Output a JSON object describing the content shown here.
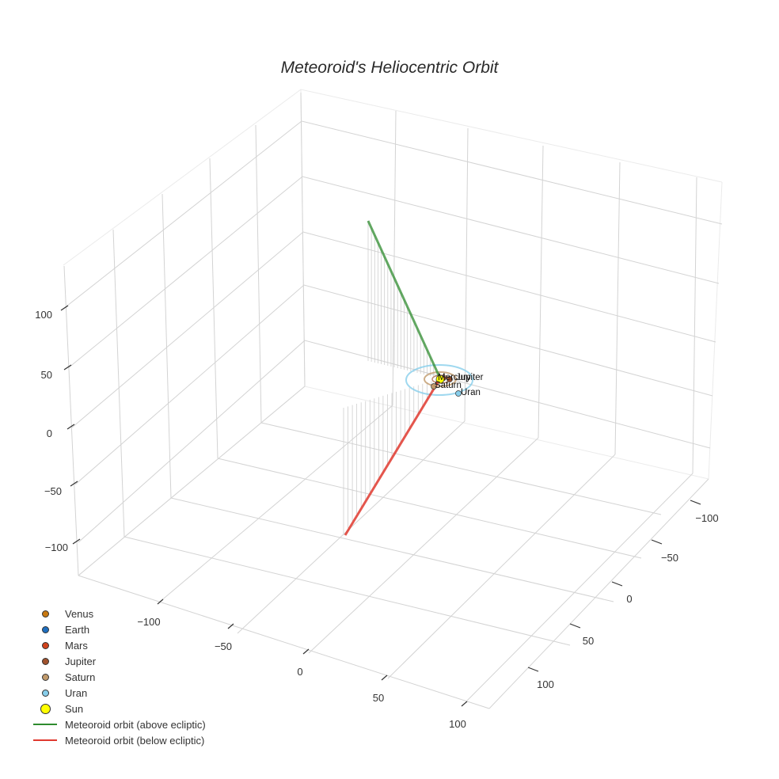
{
  "title": "Meteoroid's Heliocentric Orbit",
  "chart_data": {
    "type": "scatter3d",
    "title": "Meteoroid's Heliocentric Orbit",
    "axes": {
      "x": {
        "ticks": [
          -100,
          -50,
          0,
          50,
          100
        ],
        "range": [
          -130,
          130
        ]
      },
      "y": {
        "ticks": [
          -100,
          -50,
          0,
          50,
          100
        ],
        "range": [
          -130,
          130
        ]
      },
      "z": {
        "ticks": [
          -100,
          -50,
          0,
          50,
          100
        ],
        "range": [
          -130,
          130
        ]
      }
    },
    "grid": true,
    "legend_position": "bottom-left",
    "series": [
      {
        "name": "Venus",
        "type": "marker",
        "color": "#c8780f"
      },
      {
        "name": "Earth",
        "type": "marker",
        "color": "#1f6fbf"
      },
      {
        "name": "Mars",
        "type": "marker",
        "color": "#d0421b"
      },
      {
        "name": "Jupiter",
        "type": "marker",
        "color": "#a0522d"
      },
      {
        "name": "Saturn",
        "type": "marker",
        "color": "#c19a6b"
      },
      {
        "name": "Uran",
        "type": "marker",
        "color": "#87ceeb"
      },
      {
        "name": "Sun",
        "type": "marker",
        "color": "#ffff00"
      },
      {
        "name": "Meteoroid orbit (above ecliptic)",
        "type": "line",
        "color": "#2e8b2e",
        "approx_path_z": [
          0,
          110
        ]
      },
      {
        "name": "Meteoroid orbit (below ecliptic)",
        "type": "line",
        "color": "#e0392f",
        "approx_path_z": [
          0,
          -105
        ]
      }
    ],
    "annotations": [
      "Mercury",
      "Venus",
      "Earth",
      "Mars",
      "Jupiter",
      "Saturn",
      "Uran"
    ]
  },
  "axis_labels": {
    "z_ticks": [
      "100",
      "50",
      "0",
      "−50",
      "−100"
    ],
    "x_ticks": [
      "−100",
      "−50",
      "0",
      "50",
      "100"
    ],
    "y_ticks": [
      "−100",
      "−50",
      "0",
      "50",
      "100"
    ]
  },
  "planet_labels": {
    "cluster": "Mercury",
    "jupiter": "Jupiter",
    "saturn": "Saturn",
    "uran": "Uran"
  },
  "legend": [
    {
      "label": "Venus",
      "color": "#c8780f",
      "kind": "dot"
    },
    {
      "label": "Earth",
      "color": "#1f6fbf",
      "kind": "dot"
    },
    {
      "label": "Mars",
      "color": "#d0421b",
      "kind": "dot"
    },
    {
      "label": "Jupiter",
      "color": "#a0522d",
      "kind": "dot"
    },
    {
      "label": "Saturn",
      "color": "#c19a6b",
      "kind": "dot"
    },
    {
      "label": "Uran",
      "color": "#87ceeb",
      "kind": "dot"
    },
    {
      "label": "Sun",
      "color": "#ffff00",
      "kind": "bigdot"
    },
    {
      "label": "Meteoroid orbit (above ecliptic)",
      "color": "#2e8b2e",
      "kind": "line"
    },
    {
      "label": "Meteoroid orbit (below ecliptic)",
      "color": "#e0392f",
      "kind": "line"
    }
  ]
}
